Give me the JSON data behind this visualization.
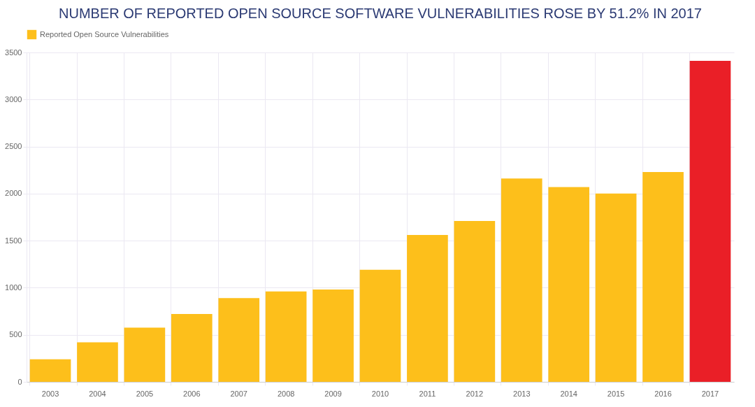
{
  "chart_data": {
    "type": "bar",
    "title": "NUMBER OF REPORTED OPEN SOURCE SOFTWARE VULNERABILITIES ROSE BY 51.2% IN 2017",
    "categories": [
      "2003",
      "2004",
      "2005",
      "2006",
      "2007",
      "2008",
      "2009",
      "2010",
      "2011",
      "2012",
      "2013",
      "2014",
      "2015",
      "2016",
      "2017"
    ],
    "series": [
      {
        "name": "Reported Open Source Vulnerabilities",
        "color": "#fdbf1b",
        "values": [
          240,
          420,
          575,
          720,
          890,
          960,
          980,
          1190,
          1560,
          1710,
          2160,
          2070,
          2000,
          2230,
          3410
        ],
        "colors": [
          "#fdbf1b",
          "#fdbf1b",
          "#fdbf1b",
          "#fdbf1b",
          "#fdbf1b",
          "#fdbf1b",
          "#fdbf1b",
          "#fdbf1b",
          "#fdbf1b",
          "#fdbf1b",
          "#fdbf1b",
          "#fdbf1b",
          "#fdbf1b",
          "#fdbf1b",
          "#ea1f27"
        ]
      }
    ],
    "ylim": [
      0,
      3500
    ],
    "yticks": [
      0,
      500,
      1000,
      1500,
      2000,
      2500,
      3000,
      3500
    ],
    "grid": true,
    "legend": "top"
  }
}
